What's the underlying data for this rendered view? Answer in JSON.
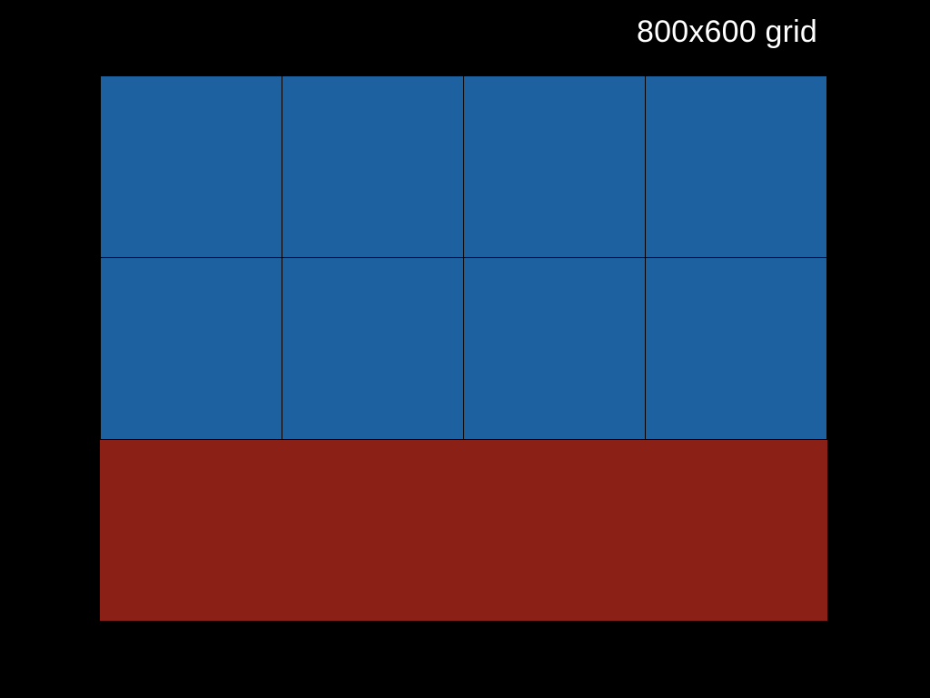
{
  "title": "800x600 grid",
  "colors": {
    "background": "#000000",
    "tile": "#1d61a0",
    "band": "#8b2116",
    "title_text": "#ffffff"
  },
  "grid": {
    "columns": 4,
    "rows": 2
  }
}
